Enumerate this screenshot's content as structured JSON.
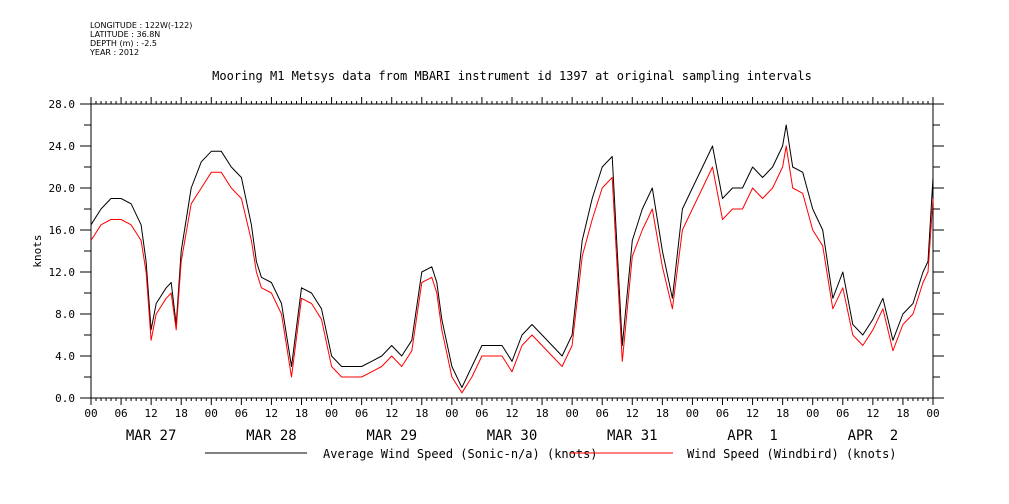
{
  "meta": {
    "longitude": "LONGITUDE : 122W(-122)",
    "latitude": "LATITUDE : 36.8N",
    "depth": "DEPTH (m) : -2.5",
    "year": "YEAR : 2012"
  },
  "chart_data": {
    "type": "line",
    "title": "Mooring M1 Metsys data from MBARI instrument id 1397 at original sampling intervals",
    "ylabel": "knots",
    "xlabel": "",
    "ylim": [
      0,
      28
    ],
    "yticks": [
      "0.0",
      "4.0",
      "8.0",
      "12.0",
      "16.0",
      "20.0",
      "24.0",
      "28.0"
    ],
    "xlim_hours": [
      0,
      168
    ],
    "xtick_hour_labels": [
      "00",
      "06",
      "12",
      "18",
      "00",
      "06",
      "12",
      "18",
      "00",
      "06",
      "12",
      "18",
      "00",
      "06",
      "12",
      "18",
      "00",
      "06",
      "12",
      "18",
      "00",
      "06",
      "12",
      "18",
      "00",
      "06",
      "12",
      "18",
      "00"
    ],
    "day_labels": [
      "MAR 27",
      "MAR 28",
      "MAR 29",
      "MAR 30",
      "MAR 31",
      "APR  1",
      "APR  2"
    ],
    "grid": false,
    "legend_position": "bottom",
    "series": [
      {
        "name": "Average Wind Speed (Sonic-n/a) (knots)",
        "color": "#000000",
        "x": [
          0,
          2,
          4,
          6,
          8,
          10,
          11,
          12,
          13,
          15,
          16,
          17,
          18,
          20,
          22,
          24,
          26,
          28,
          30,
          32,
          33,
          34,
          36,
          38,
          40,
          42,
          44,
          46,
          48,
          50,
          52,
          54,
          56,
          58,
          60,
          62,
          64,
          66,
          68,
          69,
          70,
          72,
          74,
          76,
          78,
          80,
          82,
          84,
          86,
          88,
          90,
          92,
          94,
          96,
          98,
          100,
          102,
          104,
          106,
          108,
          110,
          112,
          114,
          116,
          118,
          120,
          122,
          124,
          126,
          128,
          130,
          132,
          134,
          136,
          138,
          138.7,
          140,
          142,
          144,
          146,
          148,
          150,
          152,
          154,
          156,
          158,
          160,
          162,
          164,
          166,
          167,
          168
        ],
        "values": [
          16.5,
          18,
          19,
          19,
          18.5,
          16.5,
          13,
          6.5,
          9,
          10.5,
          11,
          7,
          14,
          20,
          22.5,
          23.5,
          23.5,
          22,
          21,
          16.5,
          13,
          11.5,
          11,
          9,
          3,
          10.5,
          10,
          8.5,
          4,
          3,
          3,
          3,
          3.5,
          4,
          5,
          4,
          5.5,
          12,
          12.5,
          11,
          7.5,
          3,
          1,
          3,
          5,
          5,
          5,
          3.5,
          6,
          7,
          6,
          5,
          4,
          6,
          15,
          19,
          22,
          23,
          5,
          15,
          18,
          20,
          14,
          9.5,
          18,
          20,
          22,
          24,
          19,
          20,
          20,
          22,
          21,
          22,
          24,
          26,
          22,
          21.5,
          18,
          16,
          9.5,
          12,
          7,
          6,
          7.5,
          9.5,
          5.5,
          8,
          9,
          12,
          13,
          21
        ]
      },
      {
        "name": "Wind Speed (Windbird) (knots)",
        "color": "#ff0000",
        "x": [
          0,
          2,
          4,
          6,
          8,
          10,
          11,
          12,
          13,
          15,
          16,
          17,
          18,
          20,
          22,
          24,
          26,
          28,
          30,
          32,
          33,
          34,
          36,
          38,
          40,
          42,
          44,
          46,
          48,
          50,
          52,
          54,
          56,
          58,
          60,
          62,
          64,
          66,
          68,
          69,
          70,
          72,
          74,
          76,
          78,
          80,
          82,
          84,
          86,
          88,
          90,
          92,
          94,
          96,
          98,
          100,
          102,
          104,
          106,
          108,
          110,
          112,
          114,
          116,
          118,
          120,
          122,
          124,
          126,
          128,
          130,
          132,
          134,
          136,
          138,
          138.7,
          140,
          142,
          144,
          146,
          148,
          150,
          152,
          154,
          156,
          158,
          160,
          162,
          164,
          166,
          167,
          168
        ],
        "values": [
          15,
          16.5,
          17,
          17,
          16.5,
          15,
          12,
          5.5,
          8,
          9.5,
          10,
          6.5,
          13,
          18.5,
          20,
          21.5,
          21.5,
          20,
          19,
          15,
          12,
          10.5,
          10,
          8,
          2,
          9.5,
          9,
          7.5,
          3,
          2,
          2,
          2,
          2.5,
          3,
          4,
          3,
          4.5,
          11,
          11.5,
          10,
          6.5,
          2,
          0.5,
          2,
          4,
          4,
          4,
          2.5,
          5,
          6,
          5,
          4,
          3,
          5,
          13.5,
          17,
          20,
          21,
          3.5,
          13.5,
          16,
          18,
          12.5,
          8.5,
          16,
          18,
          20,
          22,
          17,
          18,
          18,
          20,
          19,
          20,
          22,
          24,
          20,
          19.5,
          16,
          14.5,
          8.5,
          10.5,
          6,
          5,
          6.5,
          8.5,
          4.5,
          7,
          8,
          11,
          12,
          19
        ]
      }
    ]
  }
}
